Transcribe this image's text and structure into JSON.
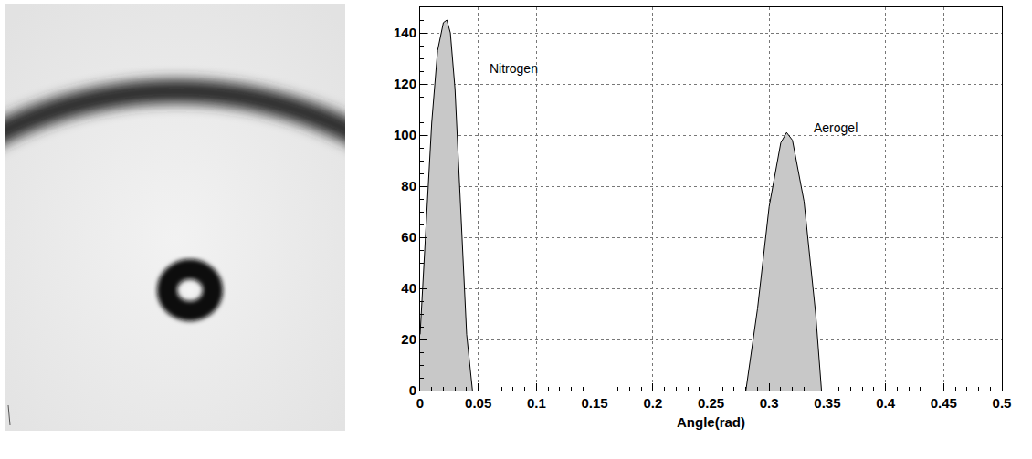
{
  "chart_data": {
    "type": "area",
    "xlabel": "Angle(rad)",
    "xlim": [
      0,
      0.5
    ],
    "xticks": [
      0,
      0.05,
      0.1,
      0.15,
      0.2,
      0.25,
      0.3,
      0.35,
      0.4,
      0.45,
      0.5
    ],
    "ylim": [
      0,
      150
    ],
    "yticks": [
      0,
      20,
      40,
      60,
      80,
      100,
      120,
      140
    ],
    "grid": true,
    "color": "#c8c8c8",
    "series": [
      {
        "x": [
          0,
          0.005,
          0.01,
          0.015,
          0.02,
          0.023,
          0.026,
          0.03,
          0.035,
          0.04,
          0.045
        ],
        "values": [
          22,
          62,
          105,
          133,
          144,
          145,
          140,
          118,
          68,
          22,
          0
        ]
      },
      {
        "x": [
          0.28,
          0.29,
          0.3,
          0.31,
          0.315,
          0.32,
          0.33,
          0.34,
          0.345
        ],
        "values": [
          0,
          32,
          72,
          97,
          101,
          98,
          74,
          30,
          0
        ]
      }
    ],
    "annotations": [
      {
        "text": "Nitrogen",
        "x": 0.058,
        "y": 126
      },
      {
        "text": "Aerogel",
        "x": 0.337,
        "y": 103
      }
    ]
  }
}
